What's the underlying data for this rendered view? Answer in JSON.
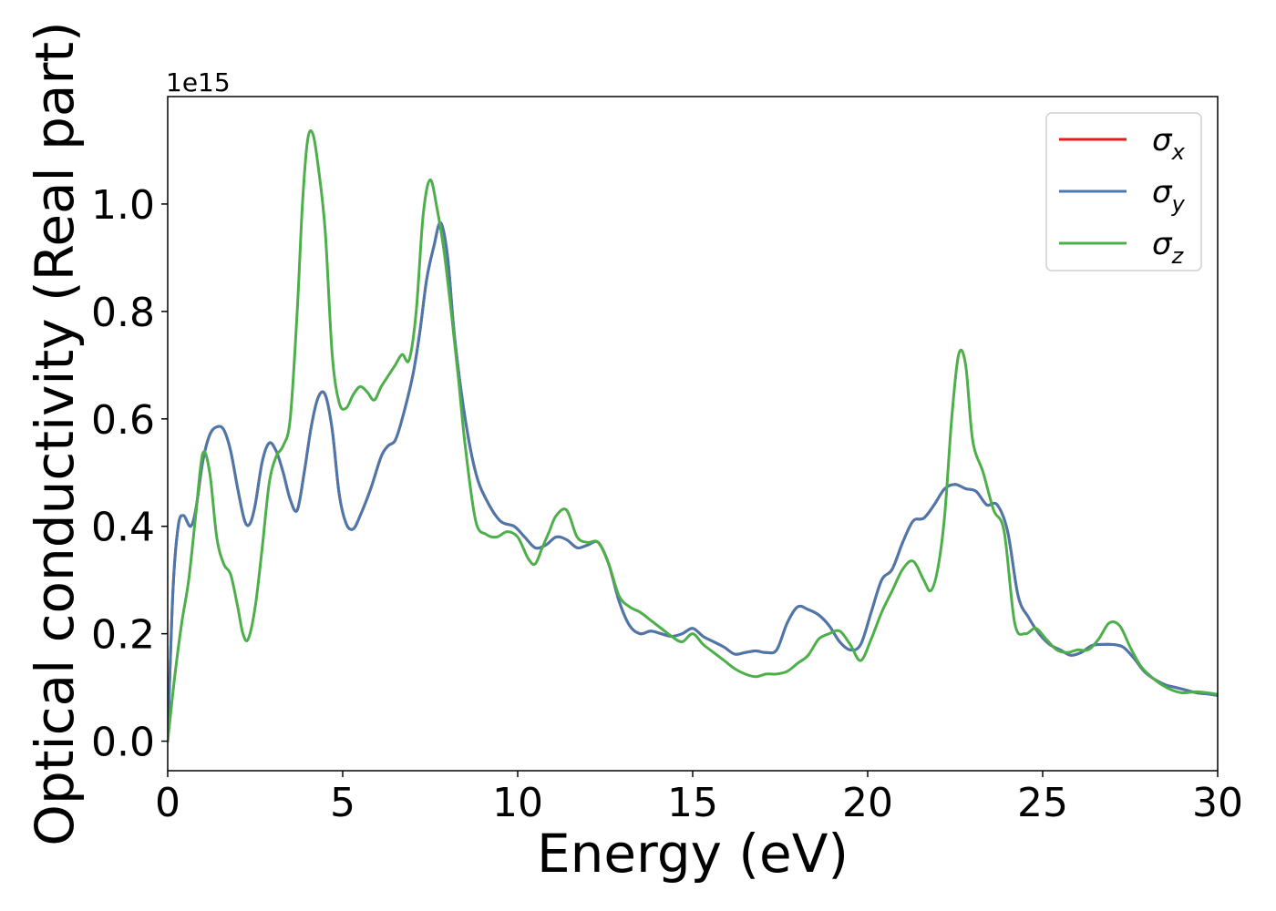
{
  "chart_data": {
    "type": "line",
    "xlabel": "Energy (eV)",
    "ylabel": "Optical conductivity (Real part)",
    "offset_text": "1e15",
    "xlim": [
      0,
      30
    ],
    "ylim": [
      -0.055,
      1.2
    ],
    "xticks": [
      0,
      5,
      10,
      15,
      20,
      25,
      30
    ],
    "xtick_labels": [
      "0",
      "5",
      "10",
      "15",
      "20",
      "25",
      "30"
    ],
    "yticks": [
      0.0,
      0.2,
      0.4,
      0.6,
      0.8,
      1.0
    ],
    "ytick_labels": [
      "0.0",
      "0.2",
      "0.4",
      "0.6",
      "0.8",
      "1.0"
    ],
    "grid": false,
    "legend_position": "top-right",
    "series": [
      {
        "name": "σx",
        "legend_base": "σ",
        "legend_sub": "x",
        "color": "#e41a1c",
        "x": [
          0,
          0.15,
          0.3,
          0.45,
          0.65,
          0.8,
          1.0,
          1.2,
          1.4,
          1.6,
          1.8,
          2.0,
          2.2,
          2.35,
          2.5,
          2.7,
          2.9,
          3.1,
          3.3,
          3.5,
          3.7,
          3.9,
          4.1,
          4.3,
          4.5,
          4.7,
          4.9,
          5.1,
          5.3,
          5.5,
          5.8,
          6.1,
          6.3,
          6.5,
          6.7,
          7.0,
          7.2,
          7.4,
          7.6,
          7.8,
          8.0,
          8.2,
          8.5,
          8.8,
          9.1,
          9.5,
          9.9,
          10.2,
          10.5,
          10.8,
          11.1,
          11.4,
          11.7,
          12.0,
          12.3,
          12.6,
          12.9,
          13.2,
          13.5,
          13.8,
          14.1,
          14.4,
          14.7,
          15.0,
          15.3,
          15.6,
          15.9,
          16.2,
          16.5,
          16.8,
          17.1,
          17.4,
          17.7,
          18.0,
          18.3,
          18.6,
          18.9,
          19.2,
          19.5,
          19.8,
          20.1,
          20.4,
          20.7,
          21.0,
          21.3,
          21.6,
          21.9,
          22.2,
          22.5,
          22.8,
          23.1,
          23.4,
          23.7,
          24.0,
          24.3,
          24.6,
          24.9,
          25.2,
          25.5,
          25.8,
          26.1,
          26.4,
          26.7,
          27.0,
          27.3,
          27.6,
          27.9,
          28.2,
          28.5,
          28.8,
          29.1,
          29.4,
          29.7,
          30.0
        ],
        "y": [
          0.0,
          0.28,
          0.4,
          0.42,
          0.4,
          0.43,
          0.52,
          0.57,
          0.585,
          0.58,
          0.54,
          0.47,
          0.41,
          0.405,
          0.44,
          0.52,
          0.555,
          0.54,
          0.5,
          0.45,
          0.43,
          0.5,
          0.585,
          0.64,
          0.645,
          0.58,
          0.46,
          0.405,
          0.395,
          0.42,
          0.47,
          0.53,
          0.55,
          0.56,
          0.6,
          0.68,
          0.76,
          0.86,
          0.92,
          0.965,
          0.9,
          0.75,
          0.6,
          0.5,
          0.45,
          0.41,
          0.4,
          0.38,
          0.36,
          0.365,
          0.38,
          0.375,
          0.36,
          0.365,
          0.37,
          0.33,
          0.26,
          0.215,
          0.2,
          0.205,
          0.2,
          0.195,
          0.2,
          0.21,
          0.195,
          0.185,
          0.175,
          0.162,
          0.165,
          0.168,
          0.165,
          0.17,
          0.22,
          0.25,
          0.245,
          0.235,
          0.215,
          0.185,
          0.17,
          0.18,
          0.24,
          0.3,
          0.32,
          0.37,
          0.41,
          0.415,
          0.44,
          0.47,
          0.478,
          0.47,
          0.465,
          0.44,
          0.44,
          0.39,
          0.27,
          0.23,
          0.2,
          0.18,
          0.17,
          0.16,
          0.165,
          0.178,
          0.18,
          0.18,
          0.175,
          0.155,
          0.13,
          0.115,
          0.105,
          0.1,
          0.095,
          0.09,
          0.088,
          0.085
        ]
      },
      {
        "name": "σy",
        "legend_base": "σ",
        "legend_sub": "y",
        "color": "#4a78ad",
        "x": [
          0,
          0.15,
          0.3,
          0.45,
          0.65,
          0.8,
          1.0,
          1.2,
          1.4,
          1.6,
          1.8,
          2.0,
          2.2,
          2.35,
          2.5,
          2.7,
          2.9,
          3.1,
          3.3,
          3.5,
          3.7,
          3.9,
          4.1,
          4.3,
          4.5,
          4.7,
          4.9,
          5.1,
          5.3,
          5.5,
          5.8,
          6.1,
          6.3,
          6.5,
          6.7,
          7.0,
          7.2,
          7.4,
          7.6,
          7.8,
          8.0,
          8.2,
          8.5,
          8.8,
          9.1,
          9.5,
          9.9,
          10.2,
          10.5,
          10.8,
          11.1,
          11.4,
          11.7,
          12.0,
          12.3,
          12.6,
          12.9,
          13.2,
          13.5,
          13.8,
          14.1,
          14.4,
          14.7,
          15.0,
          15.3,
          15.6,
          15.9,
          16.2,
          16.5,
          16.8,
          17.1,
          17.4,
          17.7,
          18.0,
          18.3,
          18.6,
          18.9,
          19.2,
          19.5,
          19.8,
          20.1,
          20.4,
          20.7,
          21.0,
          21.3,
          21.6,
          21.9,
          22.2,
          22.5,
          22.8,
          23.1,
          23.4,
          23.7,
          24.0,
          24.3,
          24.6,
          24.9,
          25.2,
          25.5,
          25.8,
          26.1,
          26.4,
          26.7,
          27.0,
          27.3,
          27.6,
          27.9,
          28.2,
          28.5,
          28.8,
          29.1,
          29.4,
          29.7,
          30.0
        ],
        "y": [
          0.0,
          0.28,
          0.4,
          0.42,
          0.4,
          0.43,
          0.52,
          0.57,
          0.585,
          0.58,
          0.54,
          0.47,
          0.41,
          0.405,
          0.44,
          0.52,
          0.555,
          0.54,
          0.5,
          0.45,
          0.43,
          0.5,
          0.585,
          0.64,
          0.645,
          0.58,
          0.46,
          0.405,
          0.395,
          0.42,
          0.47,
          0.53,
          0.55,
          0.56,
          0.6,
          0.68,
          0.76,
          0.86,
          0.92,
          0.965,
          0.9,
          0.75,
          0.6,
          0.5,
          0.45,
          0.41,
          0.4,
          0.38,
          0.36,
          0.365,
          0.38,
          0.375,
          0.36,
          0.365,
          0.37,
          0.33,
          0.26,
          0.215,
          0.2,
          0.205,
          0.2,
          0.195,
          0.2,
          0.21,
          0.195,
          0.185,
          0.175,
          0.162,
          0.165,
          0.168,
          0.165,
          0.17,
          0.22,
          0.25,
          0.245,
          0.235,
          0.215,
          0.185,
          0.17,
          0.18,
          0.24,
          0.3,
          0.32,
          0.37,
          0.41,
          0.415,
          0.44,
          0.47,
          0.478,
          0.47,
          0.465,
          0.44,
          0.44,
          0.39,
          0.27,
          0.23,
          0.2,
          0.18,
          0.17,
          0.16,
          0.165,
          0.178,
          0.18,
          0.18,
          0.175,
          0.155,
          0.13,
          0.115,
          0.105,
          0.1,
          0.095,
          0.09,
          0.088,
          0.085
        ]
      },
      {
        "name": "σz",
        "legend_base": "σ",
        "legend_sub": "z",
        "color": "#4daf4a",
        "x": [
          0,
          0.2,
          0.4,
          0.6,
          0.8,
          1.0,
          1.2,
          1.4,
          1.6,
          1.8,
          2.0,
          2.15,
          2.3,
          2.5,
          2.7,
          2.9,
          3.1,
          3.3,
          3.5,
          3.7,
          3.85,
          4.0,
          4.15,
          4.3,
          4.5,
          4.7,
          4.9,
          5.1,
          5.3,
          5.5,
          5.7,
          5.9,
          6.1,
          6.3,
          6.5,
          6.7,
          6.9,
          7.1,
          7.3,
          7.5,
          7.7,
          7.9,
          8.1,
          8.3,
          8.5,
          8.8,
          9.1,
          9.4,
          9.7,
          10.0,
          10.3,
          10.5,
          10.7,
          10.9,
          11.1,
          11.4,
          11.7,
          12.0,
          12.3,
          12.6,
          12.9,
          13.2,
          13.5,
          13.8,
          14.1,
          14.4,
          14.7,
          15.0,
          15.3,
          15.6,
          15.9,
          16.2,
          16.5,
          16.8,
          17.1,
          17.4,
          17.7,
          18.0,
          18.3,
          18.6,
          18.9,
          19.2,
          19.5,
          19.8,
          20.1,
          20.4,
          20.7,
          21.0,
          21.3,
          21.6,
          21.8,
          22.0,
          22.2,
          22.4,
          22.6,
          22.8,
          23.0,
          23.3,
          23.6,
          23.9,
          24.2,
          24.5,
          24.8,
          25.1,
          25.4,
          25.7,
          26.0,
          26.3,
          26.6,
          26.9,
          27.2,
          27.5,
          27.8,
          28.1,
          28.4,
          28.7,
          29.0,
          29.4,
          29.7,
          30.0
        ],
        "y": [
          0.0,
          0.12,
          0.22,
          0.3,
          0.42,
          0.535,
          0.5,
          0.38,
          0.33,
          0.31,
          0.25,
          0.2,
          0.19,
          0.25,
          0.36,
          0.48,
          0.53,
          0.55,
          0.6,
          0.8,
          1.0,
          1.12,
          1.13,
          1.07,
          0.95,
          0.72,
          0.63,
          0.62,
          0.645,
          0.66,
          0.65,
          0.635,
          0.66,
          0.68,
          0.7,
          0.72,
          0.71,
          0.8,
          0.98,
          1.045,
          0.99,
          0.91,
          0.8,
          0.68,
          0.55,
          0.41,
          0.385,
          0.38,
          0.39,
          0.38,
          0.34,
          0.33,
          0.36,
          0.39,
          0.42,
          0.43,
          0.38,
          0.37,
          0.37,
          0.33,
          0.27,
          0.25,
          0.24,
          0.225,
          0.21,
          0.195,
          0.185,
          0.2,
          0.18,
          0.165,
          0.15,
          0.135,
          0.125,
          0.12,
          0.125,
          0.125,
          0.13,
          0.145,
          0.16,
          0.19,
          0.2,
          0.205,
          0.18,
          0.15,
          0.19,
          0.24,
          0.28,
          0.32,
          0.335,
          0.3,
          0.28,
          0.32,
          0.42,
          0.6,
          0.72,
          0.7,
          0.56,
          0.5,
          0.43,
          0.39,
          0.22,
          0.2,
          0.21,
          0.19,
          0.17,
          0.165,
          0.17,
          0.17,
          0.19,
          0.22,
          0.215,
          0.175,
          0.14,
          0.12,
          0.105,
          0.095,
          0.09,
          0.092,
          0.09,
          0.087
        ]
      }
    ]
  }
}
